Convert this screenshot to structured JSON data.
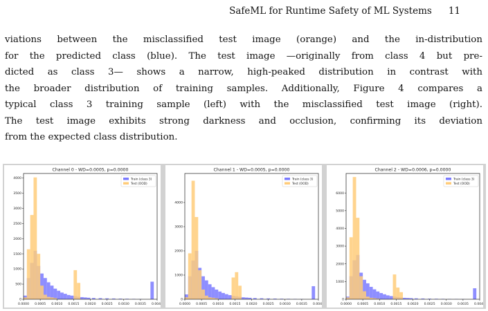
{
  "header": {
    "title": "SafeML for Runtime Safety of ML Systems",
    "page_number": "11"
  },
  "paragraph": {
    "lines": [
      "viations between the misclassified test image (orange) and the in-distribution",
      "for the predicted class (blue). The test image —originally from class 4 but pre-",
      "dicted as class 3— shows a narrow, high-peaked distribution in contrast with",
      "the broader distribution of training samples. Additionally, Figure 4 compares a",
      "typical class 3 training sample (left) with the misclassified test image (right).",
      "The test image exhibits strong darkness and occlusion, confirming its deviation",
      "from the expected class distribution."
    ]
  },
  "colors": {
    "train": "#7a7aff",
    "test": "#ffcc7a"
  },
  "chart_data": [
    {
      "type": "bar",
      "title": "Channel 0 - WD=0.0005, p=0.0000",
      "legend": [
        "Train (class 3)",
        "Test (OOD)"
      ],
      "legend_position": "top-right",
      "xlim": [
        0.0,
        0.004
      ],
      "ylim": [
        0,
        4150
      ],
      "xticks": [
        "0.0000",
        "0.0005",
        "0.0010",
        "0.0015",
        "0.0020",
        "0.0025",
        "0.0030",
        "0.0035",
        "0.0040"
      ],
      "yticks": [
        "0",
        "500",
        "1000",
        "1500",
        "2000",
        "2500",
        "3000",
        "3500",
        "4000"
      ],
      "bin_width": 0.0001,
      "series": [
        {
          "name": "Train (class 3)",
          "x": [
            5e-05,
            0.00015,
            0.00025,
            0.00035,
            0.00045,
            0.00055,
            0.00065,
            0.00075,
            0.00085,
            0.00095,
            0.00105,
            0.00115,
            0.00125,
            0.00135,
            0.00145,
            0.00155,
            0.00165,
            0.00175,
            0.00185,
            0.00195,
            0.0021,
            0.0023,
            0.0025,
            0.0027,
            0.0029,
            0.0031,
            0.0033,
            0.0035,
            0.00385
          ],
          "y": [
            120,
            700,
            1200,
            1600,
            1100,
            850,
            700,
            560,
            450,
            350,
            280,
            220,
            180,
            140,
            120,
            100,
            80,
            70,
            60,
            50,
            42,
            36,
            30,
            25,
            20,
            16,
            12,
            8,
            580
          ]
        },
        {
          "name": "Test (OOD)",
          "x": [
            5e-05,
            0.00015,
            0.00025,
            0.00035,
            0.00045,
            0.00055,
            0.00065,
            0.00075,
            0.00085,
            0.00095,
            0.00105,
            0.00115,
            0.00125,
            0.00135,
            0.00145,
            0.00155,
            0.00165
          ],
          "y": [
            60,
            1650,
            2780,
            4020,
            1500,
            450,
            150,
            80,
            60,
            40,
            0,
            0,
            0,
            0,
            0,
            960,
            540
          ]
        }
      ]
    },
    {
      "type": "bar",
      "title": "Channel 1 - WD=0.0005, p=0.0000",
      "legend": [
        "Train (class 3)",
        "Test (OOD)"
      ],
      "legend_position": "top-right",
      "xlim": [
        0.0,
        0.004
      ],
      "ylim": [
        0,
        5200
      ],
      "xticks": [
        "0.0000",
        "0.0005",
        "0.0010",
        "0.0015",
        "0.0020",
        "0.0025",
        "0.0030",
        "0.0035",
        "0.0040"
      ],
      "yticks": [
        "0",
        "1000",
        "2000",
        "3000",
        "4000"
      ],
      "bin_width": 0.0001,
      "series": [
        {
          "name": "Train (class 3)",
          "x": [
            5e-05,
            0.00015,
            0.00025,
            0.00035,
            0.00045,
            0.00055,
            0.00065,
            0.00075,
            0.00085,
            0.00095,
            0.00105,
            0.00115,
            0.00125,
            0.00135,
            0.00145,
            0.00155,
            0.00165,
            0.00175,
            0.00185,
            0.00195,
            0.0021,
            0.0023,
            0.0025,
            0.0027,
            0.0029,
            0.0031,
            0.0033,
            0.0035,
            0.00385
          ],
          "y": [
            200,
            950,
            1600,
            2000,
            1300,
            950,
            780,
            620,
            500,
            400,
            320,
            260,
            210,
            170,
            140,
            120,
            100,
            80,
            70,
            60,
            50,
            40,
            34,
            28,
            22,
            18,
            14,
            10,
            540
          ]
        },
        {
          "name": "Test (OOD)",
          "x": [
            5e-05,
            0.00015,
            0.00025,
            0.00035,
            0.00045,
            0.00055,
            0.00065,
            0.00075,
            0.00085,
            0.00095,
            0.00105,
            0.00115,
            0.00125,
            0.00135,
            0.00145,
            0.00155,
            0.00165
          ],
          "y": [
            80,
            1900,
            4900,
            3400,
            1200,
            400,
            150,
            80,
            60,
            40,
            0,
            0,
            0,
            0,
            900,
            1120,
            560
          ]
        }
      ]
    },
    {
      "type": "bar",
      "title": "Channel 2 - WD=0.0006, p=0.0000",
      "legend": [
        "Train (class 3)",
        "Test (OOD)"
      ],
      "legend_position": "top-right",
      "xlim": [
        0.0,
        0.004
      ],
      "ylim": [
        0,
        7100
      ],
      "xticks": [
        "0.0000",
        "0.0005",
        "0.0010",
        "0.0015",
        "0.0020",
        "0.0025",
        "0.0030",
        "0.0035",
        "0.0040"
      ],
      "yticks": [
        "0",
        "1000",
        "2000",
        "3000",
        "4000",
        "5000",
        "6000"
      ],
      "bin_width": 0.0001,
      "series": [
        {
          "name": "Train (class 3)",
          "x": [
            5e-05,
            0.00015,
            0.00025,
            0.00035,
            0.00045,
            0.00055,
            0.00065,
            0.00075,
            0.00085,
            0.00095,
            0.00105,
            0.00115,
            0.00125,
            0.00135,
            0.00145,
            0.00155,
            0.00165,
            0.00175,
            0.00185,
            0.00195,
            0.0021,
            0.0023,
            0.0025,
            0.0027,
            0.0029,
            0.0031,
            0.0033,
            0.0035,
            0.00385
          ],
          "y": [
            150,
            1300,
            2200,
            2500,
            1500,
            1100,
            900,
            700,
            560,
            440,
            350,
            280,
            220,
            180,
            150,
            120,
            100,
            80,
            70,
            60,
            50,
            42,
            34,
            28,
            22,
            18,
            14,
            10,
            620
          ]
        },
        {
          "name": "Test (OOD)",
          "x": [
            5e-05,
            0.00015,
            0.00025,
            0.00035,
            0.00045,
            0.00055,
            0.00065,
            0.00075,
            0.00085,
            0.00095,
            0.00105,
            0.00115,
            0.00125,
            0.00135,
            0.00145,
            0.00155,
            0.00165
          ],
          "y": [
            100,
            3500,
            6900,
            4600,
            1300,
            450,
            150,
            80,
            60,
            40,
            0,
            0,
            0,
            0,
            1400,
            660,
            400
          ]
        }
      ]
    }
  ]
}
